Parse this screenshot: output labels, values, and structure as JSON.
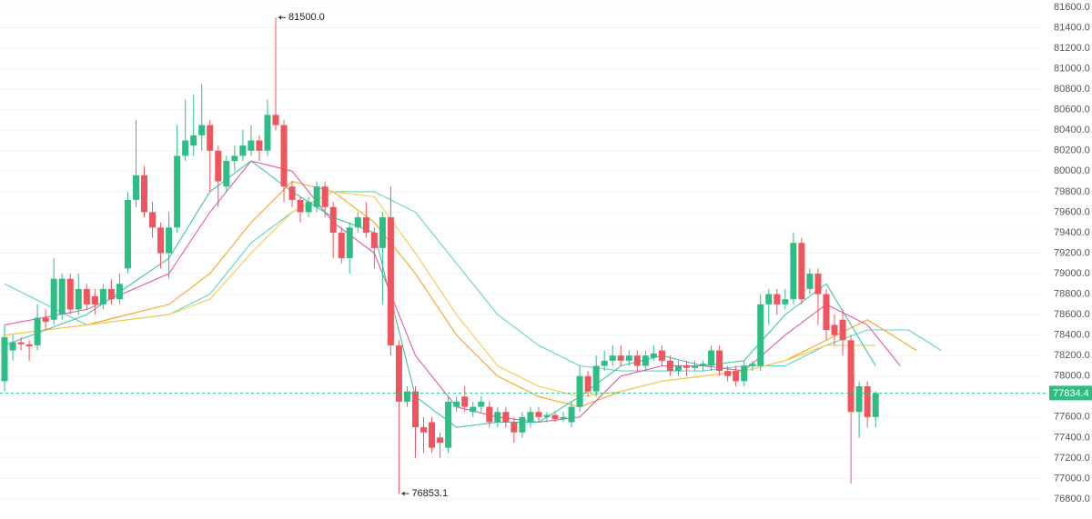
{
  "chart_data": {
    "type": "candlestick",
    "ylim": [
      76800,
      81600
    ],
    "yticks": [
      {
        "value": 76800,
        "label": "76800.0"
      },
      {
        "value": 77000,
        "label": "77000.0"
      },
      {
        "value": 77200,
        "label": "77200.0"
      },
      {
        "value": 77400,
        "label": "77400.0"
      },
      {
        "value": 77600,
        "label": "77600.0"
      },
      {
        "value": 77800,
        "label": "77800.0"
      },
      {
        "value": 78000,
        "label": "78000.0"
      },
      {
        "value": 78200,
        "label": "78200.0"
      },
      {
        "value": 78400,
        "label": "78400.0"
      },
      {
        "value": 78600,
        "label": "78600.0"
      },
      {
        "value": 78800,
        "label": "78800.0"
      },
      {
        "value": 79000,
        "label": "79000.0"
      },
      {
        "value": 79200,
        "label": "79200.0"
      },
      {
        "value": 79400,
        "label": "79400.0"
      },
      {
        "value": 79600,
        "label": "79600.0"
      },
      {
        "value": 79800,
        "label": "79800.0"
      },
      {
        "value": 80000,
        "label": "80000.0"
      },
      {
        "value": 80200,
        "label": "80200.0"
      },
      {
        "value": 80400,
        "label": "80400.0"
      },
      {
        "value": 80600,
        "label": "80600.0"
      },
      {
        "value": 80800,
        "label": "80800.0"
      },
      {
        "value": 81000,
        "label": "81000.0"
      },
      {
        "value": 81200,
        "label": "81200.0"
      },
      {
        "value": 81400,
        "label": "81400.0"
      },
      {
        "value": 81600,
        "label": "81600.0"
      }
    ],
    "grid": true,
    "up_color": "#2ebd85",
    "down_color": "#f0545c",
    "open": [
      77950,
      78250,
      78330,
      78310,
      78300,
      78570,
      78550,
      78600,
      78950,
      78650,
      78850,
      78780,
      78700,
      78850,
      78750,
      79050,
      79720,
      79960,
      79600,
      79450,
      79200,
      79450,
      80150,
      80250,
      80350,
      80450,
      80200,
      79850,
      80100,
      80150,
      80200,
      80300,
      80200,
      80550,
      80450,
      79850,
      79720,
      79600,
      79650,
      79850,
      79650,
      79400,
      79150,
      79450,
      79550,
      79400,
      79250,
      79550,
      78300,
      77750,
      77850,
      77500,
      77550,
      77400,
      77300,
      77700,
      77800,
      77650,
      77700,
      77700,
      77550,
      77650,
      77550,
      77450,
      77550,
      77650,
      77600,
      77620,
      77580,
      77550,
      77700,
      78000,
      77850,
      78100,
      78150,
      78200,
      78150,
      78200,
      78100,
      78180,
      78250,
      78150,
      78050,
      78100,
      78080,
      78100,
      78100,
      78250,
      78050,
      78050,
      77950,
      78100,
      78100,
      78700,
      78800,
      78700,
      78750,
      79300,
      78850,
      79000,
      78800,
      78500,
      78550,
      78350,
      77650,
      77900,
      77600
    ],
    "high": [
      78500,
      78400,
      78380,
      78350,
      78700,
      78650,
      79150,
      79000,
      79000,
      79000,
      78900,
      78850,
      78900,
      78950,
      79000,
      79800,
      80500,
      80050,
      79700,
      79500,
      79600,
      80450,
      80700,
      80750,
      80850,
      80500,
      80250,
      80150,
      80250,
      80400,
      80450,
      80350,
      80700,
      81500,
      80500,
      79900,
      79750,
      79750,
      79900,
      79900,
      79700,
      79450,
      79500,
      79600,
      79700,
      79450,
      79600,
      79850,
      78350,
      77900,
      77900,
      77600,
      77600,
      77450,
      77800,
      77800,
      77900,
      77750,
      77800,
      77750,
      77700,
      77700,
      77600,
      77650,
      77700,
      77700,
      77650,
      77650,
      77650,
      77750,
      78100,
      78050,
      78200,
      78250,
      78300,
      78300,
      78250,
      78250,
      78250,
      78300,
      78300,
      78200,
      78150,
      78150,
      78150,
      78150,
      78300,
      78300,
      78100,
      78100,
      78150,
      78150,
      78800,
      78850,
      78850,
      78850,
      79400,
      79350,
      79050,
      79050,
      78850,
      78600,
      78650,
      78400,
      77950,
      77950,
      77850
    ],
    "low": [
      77850,
      78150,
      78250,
      78150,
      78250,
      78450,
      78500,
      78550,
      78600,
      78600,
      78650,
      78600,
      78650,
      78700,
      78700,
      79000,
      79650,
      79550,
      79350,
      79050,
      78950,
      79400,
      80100,
      80150,
      80200,
      79800,
      79650,
      79800,
      80000,
      80100,
      80150,
      80100,
      80150,
      80400,
      79700,
      79650,
      79500,
      79550,
      79600,
      79550,
      79150,
      79100,
      79000,
      79400,
      79350,
      79050,
      78700,
      78200,
      76853.1,
      77700,
      77200,
      77250,
      77250,
      77200,
      77250,
      77650,
      77650,
      77600,
      77650,
      77500,
      77500,
      77500,
      77350,
      77400,
      77500,
      77550,
      77550,
      77550,
      77550,
      77500,
      77650,
      77800,
      77800,
      78050,
      78100,
      78100,
      78100,
      78050,
      78050,
      78150,
      78100,
      78000,
      78000,
      78000,
      78050,
      78050,
      78050,
      78000,
      77950,
      77900,
      77900,
      78050,
      78050,
      78500,
      78600,
      78650,
      78700,
      78700,
      78800,
      78500,
      78350,
      78300,
      78200,
      76950,
      77400,
      77500,
      77500
    ],
    "close": [
      78380,
      78330,
      78310,
      78290,
      78570,
      78530,
      78950,
      78950,
      78650,
      78850,
      78700,
      78700,
      78850,
      78750,
      78900,
      79720,
      79960,
      79600,
      79450,
      79200,
      79450,
      80150,
      80300,
      80350,
      80450,
      80200,
      79900,
      80100,
      80150,
      80250,
      80300,
      80200,
      80550,
      80450,
      79850,
      79720,
      79600,
      79700,
      79850,
      79650,
      79400,
      79150,
      79450,
      79550,
      79400,
      79250,
      79550,
      78300,
      77750,
      77850,
      77500,
      77450,
      77300,
      77350,
      77750,
      77750,
      77700,
      77700,
      77750,
      77550,
      77650,
      77550,
      77450,
      77600,
      77650,
      77600,
      77620,
      77580,
      77600,
      77700,
      78000,
      77850,
      78100,
      78150,
      78200,
      78150,
      78200,
      78100,
      78200,
      78220,
      78150,
      78050,
      78100,
      78080,
      78100,
      78120,
      78250,
      78050,
      78000,
      77950,
      78100,
      78120,
      78700,
      78800,
      78700,
      78750,
      79300,
      78750,
      79000,
      78800,
      78450,
      78400,
      78350,
      77650,
      77900,
      77600,
      77834.4
    ],
    "series": [
      {
        "color": "#5fd4c0",
        "x": [
          0,
          10,
          20,
          25,
          30,
          35,
          40,
          45,
          50,
          55,
          60,
          65,
          70,
          75,
          80,
          85,
          90,
          95,
          100,
          105,
          110,
          114
        ],
        "values": [
          78900,
          78500,
          78600,
          78800,
          79300,
          79600,
          79800,
          79800,
          79600,
          79100,
          78600,
          78300,
          78100,
          78050,
          78050,
          78050,
          78100,
          78100,
          78300,
          78450,
          78450,
          78250
        ]
      },
      {
        "color": "#f5a623",
        "x": [
          0,
          10,
          20,
          25,
          30,
          35,
          40,
          45,
          50,
          55,
          60,
          65,
          70,
          75,
          80,
          85,
          90,
          95,
          100,
          105,
          111
        ],
        "values": [
          78400,
          78500,
          78700,
          79000,
          79500,
          79900,
          79800,
          79500,
          79000,
          78400,
          78000,
          77800,
          77700,
          77850,
          77950,
          78000,
          78050,
          78150,
          78350,
          78550,
          78250
        ]
      },
      {
        "color": "#e25aa8",
        "x": [
          0,
          10,
          20,
          25,
          30,
          35,
          40,
          45,
          50,
          55,
          60,
          65,
          70,
          75,
          80,
          85,
          90,
          95,
          100,
          105,
          109
        ],
        "values": [
          78500,
          78650,
          79000,
          79600,
          80100,
          80000,
          79500,
          79200,
          78200,
          77700,
          77600,
          77550,
          77600,
          78000,
          78100,
          78100,
          78050,
          78400,
          78700,
          78500,
          78100
        ]
      },
      {
        "color": "#f7c948",
        "x": [
          0,
          10,
          20,
          25,
          30,
          35,
          40,
          45,
          50,
          55,
          60,
          65,
          70,
          75,
          80,
          85,
          90,
          95,
          100,
          106
        ],
        "values": [
          78400,
          78500,
          78600,
          78750,
          79200,
          79600,
          79800,
          79750,
          79200,
          78600,
          78100,
          77900,
          77800,
          77850,
          77950,
          78000,
          78050,
          78150,
          78300,
          78300
        ]
      },
      {
        "color": "#3cc6a8",
        "x": [
          0,
          10,
          20,
          25,
          30,
          35,
          40,
          45,
          50,
          55,
          60,
          65,
          70,
          75,
          80,
          85,
          90,
          95,
          100,
          106
        ],
        "values": [
          78300,
          78600,
          79150,
          79800,
          80100,
          79800,
          79550,
          79400,
          77800,
          77500,
          77550,
          77550,
          77800,
          78100,
          78200,
          78100,
          78150,
          78600,
          78900,
          78100
        ]
      }
    ],
    "last_price": 77834.4,
    "annotations": [
      {
        "label": "81500.0"
      },
      {
        "label": "76853.1"
      }
    ]
  }
}
